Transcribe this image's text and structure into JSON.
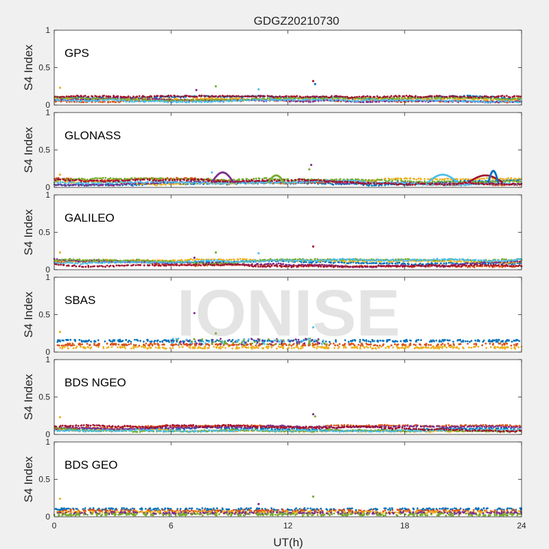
{
  "figure": {
    "title": "GDGZ20210730",
    "xlabel": "UT(h)",
    "ylabel": "S4 Index",
    "watermark": "IONISE",
    "background_color": "#f0f0f0",
    "axes_color": "#ffffff"
  },
  "chart_data": [
    {
      "type": "scatter",
      "panel_label": "GPS",
      "xlim": [
        0,
        24
      ],
      "ylim": [
        0,
        1
      ],
      "xticks": [
        0,
        6,
        12,
        18,
        24
      ],
      "xtick_labels": [
        "",
        "",
        "",
        "",
        ""
      ],
      "yticks": [
        0,
        0.5,
        1
      ],
      "ytick_labels": [
        "0",
        "0.5",
        "1"
      ],
      "grid": false,
      "series_colors": [
        "#0072BD",
        "#D95319",
        "#EDB120",
        "#7E2F8E",
        "#77AC30",
        "#4DBEEE",
        "#A2142F"
      ],
      "baseline_range": [
        0.04,
        0.12
      ],
      "outliers": [
        [
          0.3,
          0.23
        ],
        [
          7.3,
          0.2
        ],
        [
          8.3,
          0.25
        ],
        [
          10.5,
          0.21
        ],
        [
          13.3,
          0.32
        ],
        [
          13.4,
          0.28
        ]
      ]
    },
    {
      "type": "scatter",
      "panel_label": "GLONASS",
      "xlim": [
        0,
        24
      ],
      "ylim": [
        0,
        1
      ],
      "xticks": [
        0,
        6,
        12,
        18,
        24
      ],
      "xtick_labels": [
        "",
        "",
        "",
        "",
        ""
      ],
      "yticks": [
        0,
        0.5,
        1
      ],
      "ytick_labels": [
        "0",
        "0.5",
        "1"
      ],
      "grid": false,
      "series_colors": [
        "#0072BD",
        "#D95319",
        "#EDB120",
        "#7E2F8E",
        "#77AC30",
        "#4DBEEE",
        "#A2142F"
      ],
      "baseline_range": [
        0.03,
        0.12
      ],
      "arcs": [
        [
          8.1,
          9.2,
          0.2
        ],
        [
          11.0,
          11.8,
          0.16
        ],
        [
          19.2,
          20.7,
          0.17
        ],
        [
          21.3,
          23.0,
          0.16
        ],
        [
          22.3,
          22.8,
          0.22
        ]
      ],
      "outliers": [
        [
          0.3,
          0.17
        ],
        [
          13.2,
          0.3
        ],
        [
          13.1,
          0.24
        ],
        [
          8.1,
          0.2
        ]
      ]
    },
    {
      "type": "scatter",
      "panel_label": "GALILEO",
      "xlim": [
        0,
        24
      ],
      "ylim": [
        0,
        1
      ],
      "xticks": [
        0,
        6,
        12,
        18,
        24
      ],
      "xtick_labels": [
        "",
        "",
        "",
        "",
        ""
      ],
      "yticks": [
        0,
        0.5,
        1
      ],
      "ytick_labels": [
        "0",
        "0.5",
        "1"
      ],
      "grid": false,
      "series_colors": [
        "#0072BD",
        "#D95319",
        "#EDB120",
        "#7E2F8E",
        "#77AC30",
        "#4DBEEE",
        "#A2142F"
      ],
      "baseline_range": [
        0.04,
        0.14
      ],
      "outliers": [
        [
          0.3,
          0.23
        ],
        [
          7.2,
          0.16
        ],
        [
          8.3,
          0.23
        ],
        [
          10.5,
          0.22
        ],
        [
          13.3,
          0.31
        ]
      ]
    },
    {
      "type": "scatter",
      "panel_label": "SBAS",
      "xlim": [
        0,
        24
      ],
      "ylim": [
        0,
        1
      ],
      "xticks": [
        0,
        6,
        12,
        18,
        24
      ],
      "xtick_labels": [
        "",
        "",
        "",
        "",
        ""
      ],
      "yticks": [
        0,
        0.5,
        1
      ],
      "ytick_labels": [
        "0",
        "0.5",
        "1"
      ],
      "grid": false,
      "series_colors": [
        "#0072BD",
        "#D95319",
        "#EDB120",
        "#7E2F8E",
        "#77AC30",
        "#4DBEEE",
        "#A2142F"
      ],
      "bands": [
        0.15,
        0.1,
        0.06
      ],
      "outliers": [
        [
          0.3,
          0.27
        ],
        [
          7.2,
          0.52
        ],
        [
          8.3,
          0.25
        ],
        [
          13.3,
          0.33
        ]
      ]
    },
    {
      "type": "scatter",
      "panel_label": "BDS NGEO",
      "xlim": [
        0,
        24
      ],
      "ylim": [
        0,
        1
      ],
      "xticks": [
        0,
        6,
        12,
        18,
        24
      ],
      "xtick_labels": [
        "",
        "",
        "",
        "",
        ""
      ],
      "yticks": [
        0,
        0.5,
        1
      ],
      "ytick_labels": [
        "0",
        "0.5",
        "1"
      ],
      "grid": false,
      "series_colors": [
        "#0072BD",
        "#D95319",
        "#EDB120",
        "#7E2F8E",
        "#77AC30",
        "#4DBEEE",
        "#A2142F"
      ],
      "baseline_range": [
        0.04,
        0.12
      ],
      "outliers": [
        [
          0.3,
          0.23
        ],
        [
          13.3,
          0.27
        ],
        [
          13.4,
          0.24
        ]
      ]
    },
    {
      "type": "scatter",
      "panel_label": "BDS GEO",
      "xlim": [
        0,
        24
      ],
      "ylim": [
        0,
        1
      ],
      "xticks": [
        0,
        6,
        12,
        18,
        24
      ],
      "xtick_labels": [
        "0",
        "6",
        "12",
        "18",
        "24"
      ],
      "yticks": [
        0,
        0.5,
        1
      ],
      "ytick_labels": [
        "0",
        "0.5",
        "1"
      ],
      "grid": false,
      "series_colors": [
        "#0072BD",
        "#D95319",
        "#EDB120",
        "#7E2F8E",
        "#77AC30",
        "#4DBEEE",
        "#A2142F"
      ],
      "bands": [
        0.1,
        0.08,
        0.06,
        0.05,
        0.03
      ],
      "outliers": [
        [
          0.3,
          0.24
        ],
        [
          10.5,
          0.17
        ],
        [
          13.3,
          0.27
        ]
      ]
    }
  ]
}
